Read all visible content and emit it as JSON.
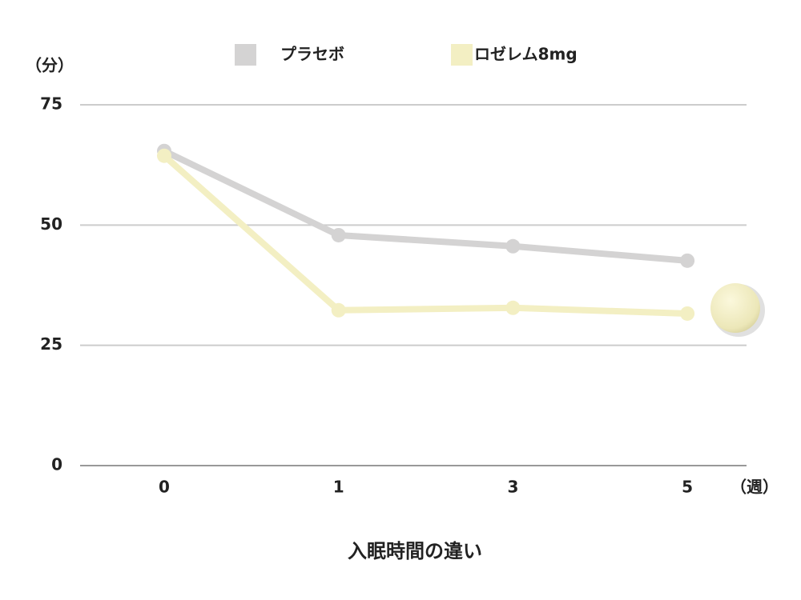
{
  "chart_data": {
    "type": "line",
    "y_label": "（分）",
    "x_unit": "（週）",
    "x_title": "入眠時間の違い",
    "categories": [
      "0",
      "1",
      "3",
      "5"
    ],
    "series": [
      {
        "name": "プラセボ",
        "color": "#d4d3d3",
        "values": [
          65.4,
          47.9,
          45.6,
          42.6
        ]
      },
      {
        "name": "ロゼレム8mg",
        "color": "#f3efc3",
        "values": [
          64.4,
          32.3,
          32.8,
          31.6
        ]
      }
    ],
    "ylim": [
      0,
      75
    ],
    "yticks": [
      0,
      25,
      50,
      75
    ],
    "grid": true
  }
}
